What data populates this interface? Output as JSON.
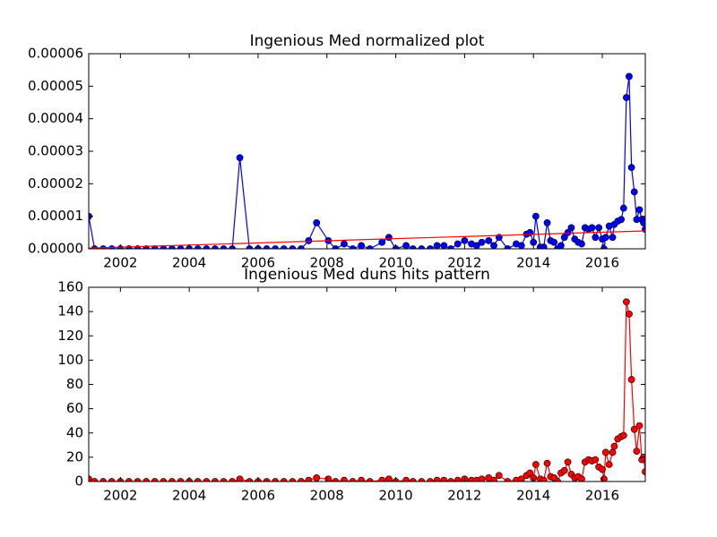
{
  "chart_data": [
    {
      "type": "line",
      "title": "Ingenious Med normalized plot",
      "x": [
        2001.08,
        2001.25,
        2001.5,
        2001.75,
        2002.0,
        2002.25,
        2002.5,
        2002.75,
        2003.0,
        2003.25,
        2003.5,
        2003.75,
        2004.0,
        2004.25,
        2004.5,
        2004.75,
        2005.0,
        2005.25,
        2005.47,
        2005.75,
        2006.0,
        2006.25,
        2006.5,
        2006.75,
        2007.0,
        2007.25,
        2007.47,
        2007.7,
        2008.04,
        2008.25,
        2008.5,
        2008.75,
        2009.0,
        2009.25,
        2009.6,
        2009.8,
        2010.0,
        2010.3,
        2010.5,
        2010.75,
        2011.0,
        2011.2,
        2011.4,
        2011.6,
        2011.8,
        2012.0,
        2012.2,
        2012.35,
        2012.5,
        2012.7,
        2012.85,
        2013.0,
        2013.25,
        2013.5,
        2013.65,
        2013.8,
        2013.9,
        2014.0,
        2014.07,
        2014.2,
        2014.3,
        2014.4,
        2014.5,
        2014.6,
        2014.7,
        2014.8,
        2014.9,
        2015.0,
        2015.1,
        2015.2,
        2015.3,
        2015.4,
        2015.5,
        2015.6,
        2015.7,
        2015.8,
        2015.9,
        2016.0,
        2016.05,
        2016.1,
        2016.2,
        2016.3,
        2016.35,
        2016.45,
        2016.55,
        2016.62,
        2016.7,
        2016.78,
        2016.85,
        2016.93,
        2017.0,
        2017.08,
        2017.15,
        2017.2,
        2017.25
      ],
      "series": [
        {
          "color": "#0000ff",
          "markers": true,
          "values": [
            1e-05,
            0,
            0,
            0,
            0,
            0,
            0,
            0,
            0,
            0,
            0,
            0,
            0,
            0,
            0,
            0,
            0,
            0,
            2.8e-05,
            0,
            0,
            0,
            0,
            0,
            0,
            0,
            2.5e-06,
            8e-06,
            2.5e-06,
            0,
            1.5e-06,
            0,
            1e-06,
            0,
            2e-06,
            3.5e-06,
            0,
            1e-06,
            0,
            0,
            0,
            1e-06,
            1e-06,
            0,
            1.5e-06,
            2.5e-06,
            1.5e-06,
            1e-06,
            2e-06,
            2.5e-06,
            1e-06,
            3.5e-06,
            0,
            1.5e-06,
            1e-06,
            4.5e-06,
            5e-06,
            2e-06,
            1e-05,
            5e-07,
            5e-07,
            8e-06,
            2.5e-06,
            2e-06,
            0,
            1e-06,
            3.5e-06,
            5e-06,
            6.5e-06,
            3e-06,
            2e-06,
            1.5e-06,
            6.5e-06,
            6e-06,
            6.5e-06,
            3.5e-06,
            6.5e-06,
            3e-06,
            0,
            3.5e-06,
            7e-06,
            3.5e-06,
            7.5e-06,
            8.5e-06,
            9e-06,
            1.25e-05,
            4.65e-05,
            5.3e-05,
            2.5e-05,
            1.75e-05,
            9e-06,
            1.2e-05,
            9e-06,
            8e-06,
            6e-06
          ]
        },
        {
          "color": "#ff0000",
          "markers": false,
          "x": [
            2001.08,
            2017.25
          ],
          "values": [
            2e-07,
            5.5e-06
          ]
        }
      ],
      "xlim": [
        2001.08,
        2017.25
      ],
      "xticks": [
        2002,
        2004,
        2006,
        2008,
        2010,
        2012,
        2014,
        2016
      ],
      "ylim": [
        0,
        6e-05
      ],
      "yticks": [
        {
          "value": 0,
          "label": "0.00000"
        },
        1e-05,
        2e-05,
        3e-05,
        4e-05,
        5e-05,
        6e-05
      ]
    },
    {
      "type": "line",
      "title": "Ingenious Med duns hits pattern",
      "x": [
        2001.08,
        2001.25,
        2001.5,
        2001.75,
        2002.0,
        2002.25,
        2002.5,
        2002.75,
        2003.0,
        2003.25,
        2003.5,
        2003.75,
        2004.0,
        2004.25,
        2004.5,
        2004.75,
        2005.0,
        2005.25,
        2005.47,
        2005.75,
        2006.0,
        2006.25,
        2006.5,
        2006.75,
        2007.0,
        2007.25,
        2007.47,
        2007.7,
        2008.04,
        2008.25,
        2008.5,
        2008.75,
        2009.0,
        2009.25,
        2009.6,
        2009.8,
        2010.0,
        2010.3,
        2010.5,
        2010.75,
        2011.0,
        2011.2,
        2011.4,
        2011.6,
        2011.8,
        2012.0,
        2012.2,
        2012.35,
        2012.5,
        2012.7,
        2012.85,
        2013.0,
        2013.25,
        2013.5,
        2013.65,
        2013.8,
        2013.9,
        2014.0,
        2014.07,
        2014.2,
        2014.3,
        2014.4,
        2014.5,
        2014.6,
        2014.7,
        2014.8,
        2014.9,
        2015.0,
        2015.1,
        2015.2,
        2015.3,
        2015.4,
        2015.5,
        2015.6,
        2015.7,
        2015.8,
        2015.9,
        2016.0,
        2016.05,
        2016.1,
        2016.2,
        2016.3,
        2016.35,
        2016.45,
        2016.55,
        2016.62,
        2016.7,
        2016.78,
        2016.85,
        2016.93,
        2017.0,
        2017.08,
        2017.15,
        2017.2,
        2017.25
      ],
      "series": [
        {
          "color": "#ff0000",
          "markers": true,
          "values": [
            2,
            0,
            0,
            0,
            0,
            0,
            0,
            0,
            0,
            0,
            0,
            0,
            0,
            0,
            0,
            0,
            0,
            0,
            2,
            0,
            0,
            0,
            0,
            0,
            0,
            0,
            1,
            3,
            2,
            0,
            1,
            0,
            1,
            0,
            1,
            2,
            0,
            1,
            0,
            0,
            0,
            1,
            1,
            0,
            1,
            2,
            1,
            1,
            2,
            3,
            1,
            5,
            0,
            1,
            2,
            5,
            7,
            3,
            14,
            2,
            1,
            15,
            4,
            3,
            0,
            7,
            9,
            16,
            6,
            3,
            4,
            2,
            16,
            18,
            17,
            18,
            12,
            10,
            2,
            24,
            14,
            24,
            29,
            35,
            37,
            38,
            148,
            138,
            84,
            43,
            25,
            46,
            18,
            20,
            8
          ]
        }
      ],
      "xlim": [
        2001.08,
        2017.25
      ],
      "xticks": [
        2002,
        2004,
        2006,
        2008,
        2010,
        2012,
        2014,
        2016
      ],
      "ylim": [
        0,
        160
      ],
      "yticks": [
        0,
        20,
        40,
        60,
        80,
        100,
        120,
        140,
        160
      ]
    }
  ]
}
